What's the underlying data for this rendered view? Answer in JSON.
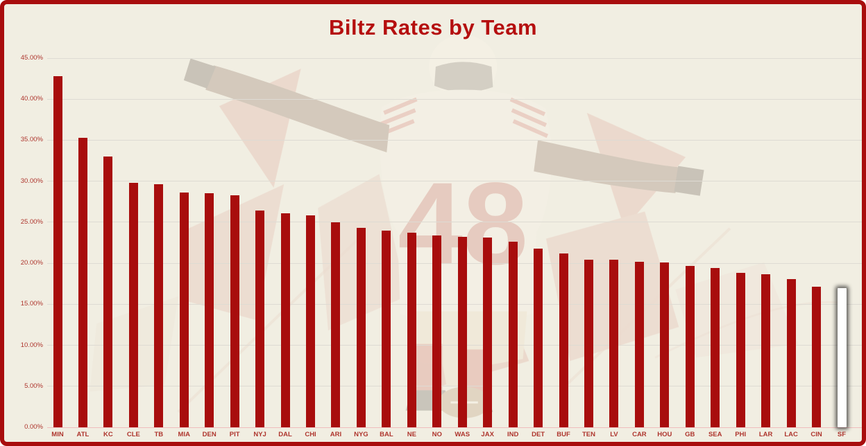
{
  "title": "Biltz Rates by Team",
  "watermark": {
    "description": "faded 49ers football player celebrating with arms outstretched, football at his feet, red crystal shards behind",
    "jersey_number": "48"
  },
  "chart_data": {
    "type": "bar",
    "title": "Biltz Rates by Team",
    "categories": [
      "MIN",
      "ATL",
      "KC",
      "CLE",
      "TB",
      "MIA",
      "DEN",
      "PIT",
      "NYJ",
      "DAL",
      "CHI",
      "ARI",
      "NYG",
      "BAL",
      "NE",
      "NO",
      "WAS",
      "JAX",
      "IND",
      "DET",
      "BUF",
      "TEN",
      "LV",
      "CAR",
      "HOU",
      "GB",
      "SEA",
      "PHI",
      "LAR",
      "LAC",
      "CIN",
      "SF"
    ],
    "values": [
      42.8,
      35.3,
      33.0,
      29.8,
      29.6,
      28.6,
      28.5,
      28.3,
      26.4,
      26.1,
      25.8,
      25.0,
      24.3,
      24.0,
      23.7,
      23.4,
      23.2,
      23.1,
      22.6,
      21.8,
      21.2,
      20.4,
      20.4,
      20.2,
      20.1,
      19.7,
      19.4,
      18.8,
      18.7,
      18.1,
      17.1,
      17.0
    ],
    "ylim": [
      0,
      45
    ],
    "ytick_values": [
      0,
      5,
      10,
      15,
      20,
      25,
      30,
      35,
      40,
      45
    ],
    "ytick_labels": [
      "0.00%",
      "5.00%",
      "10.00%",
      "15.00%",
      "20.00%",
      "25.00%",
      "30.00%",
      "35.00%",
      "40.00%",
      "45.00%"
    ],
    "xlabel": "",
    "ylabel": "",
    "grid": true,
    "legend": false,
    "highlighted_category": "SF",
    "colors": {
      "bar": "#a80d0d",
      "highlight_bar": "#ffffff",
      "frame_border": "#a80d0d",
      "background": "#f1eee2",
      "gridline": "#dedbd3",
      "zero_axis_line": "#f0bcbc",
      "tick_label": "#ae352d",
      "title": "#b50f0f"
    }
  }
}
